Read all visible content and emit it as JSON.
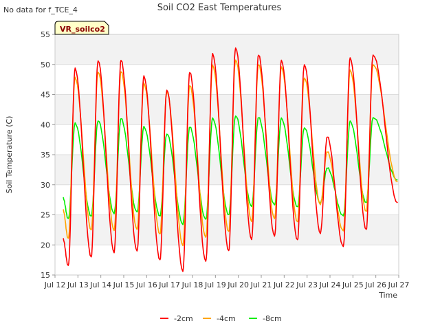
{
  "chart_data": {
    "type": "line",
    "title": "Soil CO2 East Temperatures",
    "note": "No data for f_TCE_4",
    "station_label": "VR_soilco2",
    "xlabel": "Time",
    "ylabel": "Soil Temperature (C)",
    "xlim": [
      "2016-07-12",
      "2016-07-27"
    ],
    "ylim": [
      15,
      55
    ],
    "yticks": [
      15,
      20,
      25,
      30,
      35,
      40,
      45,
      50,
      55
    ],
    "xticks": [
      "Jul 12",
      "Jul 13",
      "Jul 14",
      "Jul 15",
      "Jul 16",
      "Jul 17",
      "Jul 18",
      "Jul 19",
      "Jul 20",
      "Jul 21",
      "Jul 22",
      "Jul 23",
      "Jul 24",
      "Jul 25",
      "Jul 26",
      "Jul 27"
    ],
    "grid": true,
    "legend_position": "bottom",
    "series": [
      {
        "name": "-2cm",
        "color": "#ff0000",
        "minima": [
          16.5,
          18.0,
          18.8,
          18.9,
          17.5,
          15.7,
          17.2,
          19.0,
          21.0,
          21.4,
          20.8,
          22.0,
          19.7,
          22.5
        ],
        "maxima": [
          49.3,
          50.7,
          50.7,
          48.0,
          45.8,
          48.7,
          51.7,
          52.8,
          51.6,
          50.6,
          50.0,
          38.0,
          51.0,
          51.6
        ],
        "start": 21.0,
        "end": 27.0
      },
      {
        "name": "-4cm",
        "color": "#ffa500",
        "minima": [
          21.0,
          22.5,
          22.5,
          22.5,
          21.8,
          20.0,
          21.2,
          22.2,
          24.0,
          24.3,
          23.8,
          26.8,
          22.3,
          25.5
        ],
        "maxima": [
          47.8,
          48.8,
          48.8,
          46.8,
          45.5,
          46.5,
          49.8,
          50.8,
          50.0,
          49.5,
          47.8,
          35.5,
          49.0,
          50.0
        ],
        "start": 25.8,
        "end": 30.5
      },
      {
        "name": "-8cm",
        "color": "#00ee00",
        "minima": [
          24.3,
          24.8,
          25.3,
          25.4,
          24.8,
          23.5,
          24.2,
          25.0,
          26.5,
          26.6,
          26.3,
          27.0,
          24.8,
          27.0
        ],
        "maxima": [
          40.2,
          40.7,
          41.0,
          39.6,
          38.5,
          39.6,
          41.0,
          41.5,
          41.2,
          41.0,
          39.5,
          32.8,
          40.5,
          41.2
        ],
        "start": 27.8,
        "end": 30.8
      }
    ]
  }
}
